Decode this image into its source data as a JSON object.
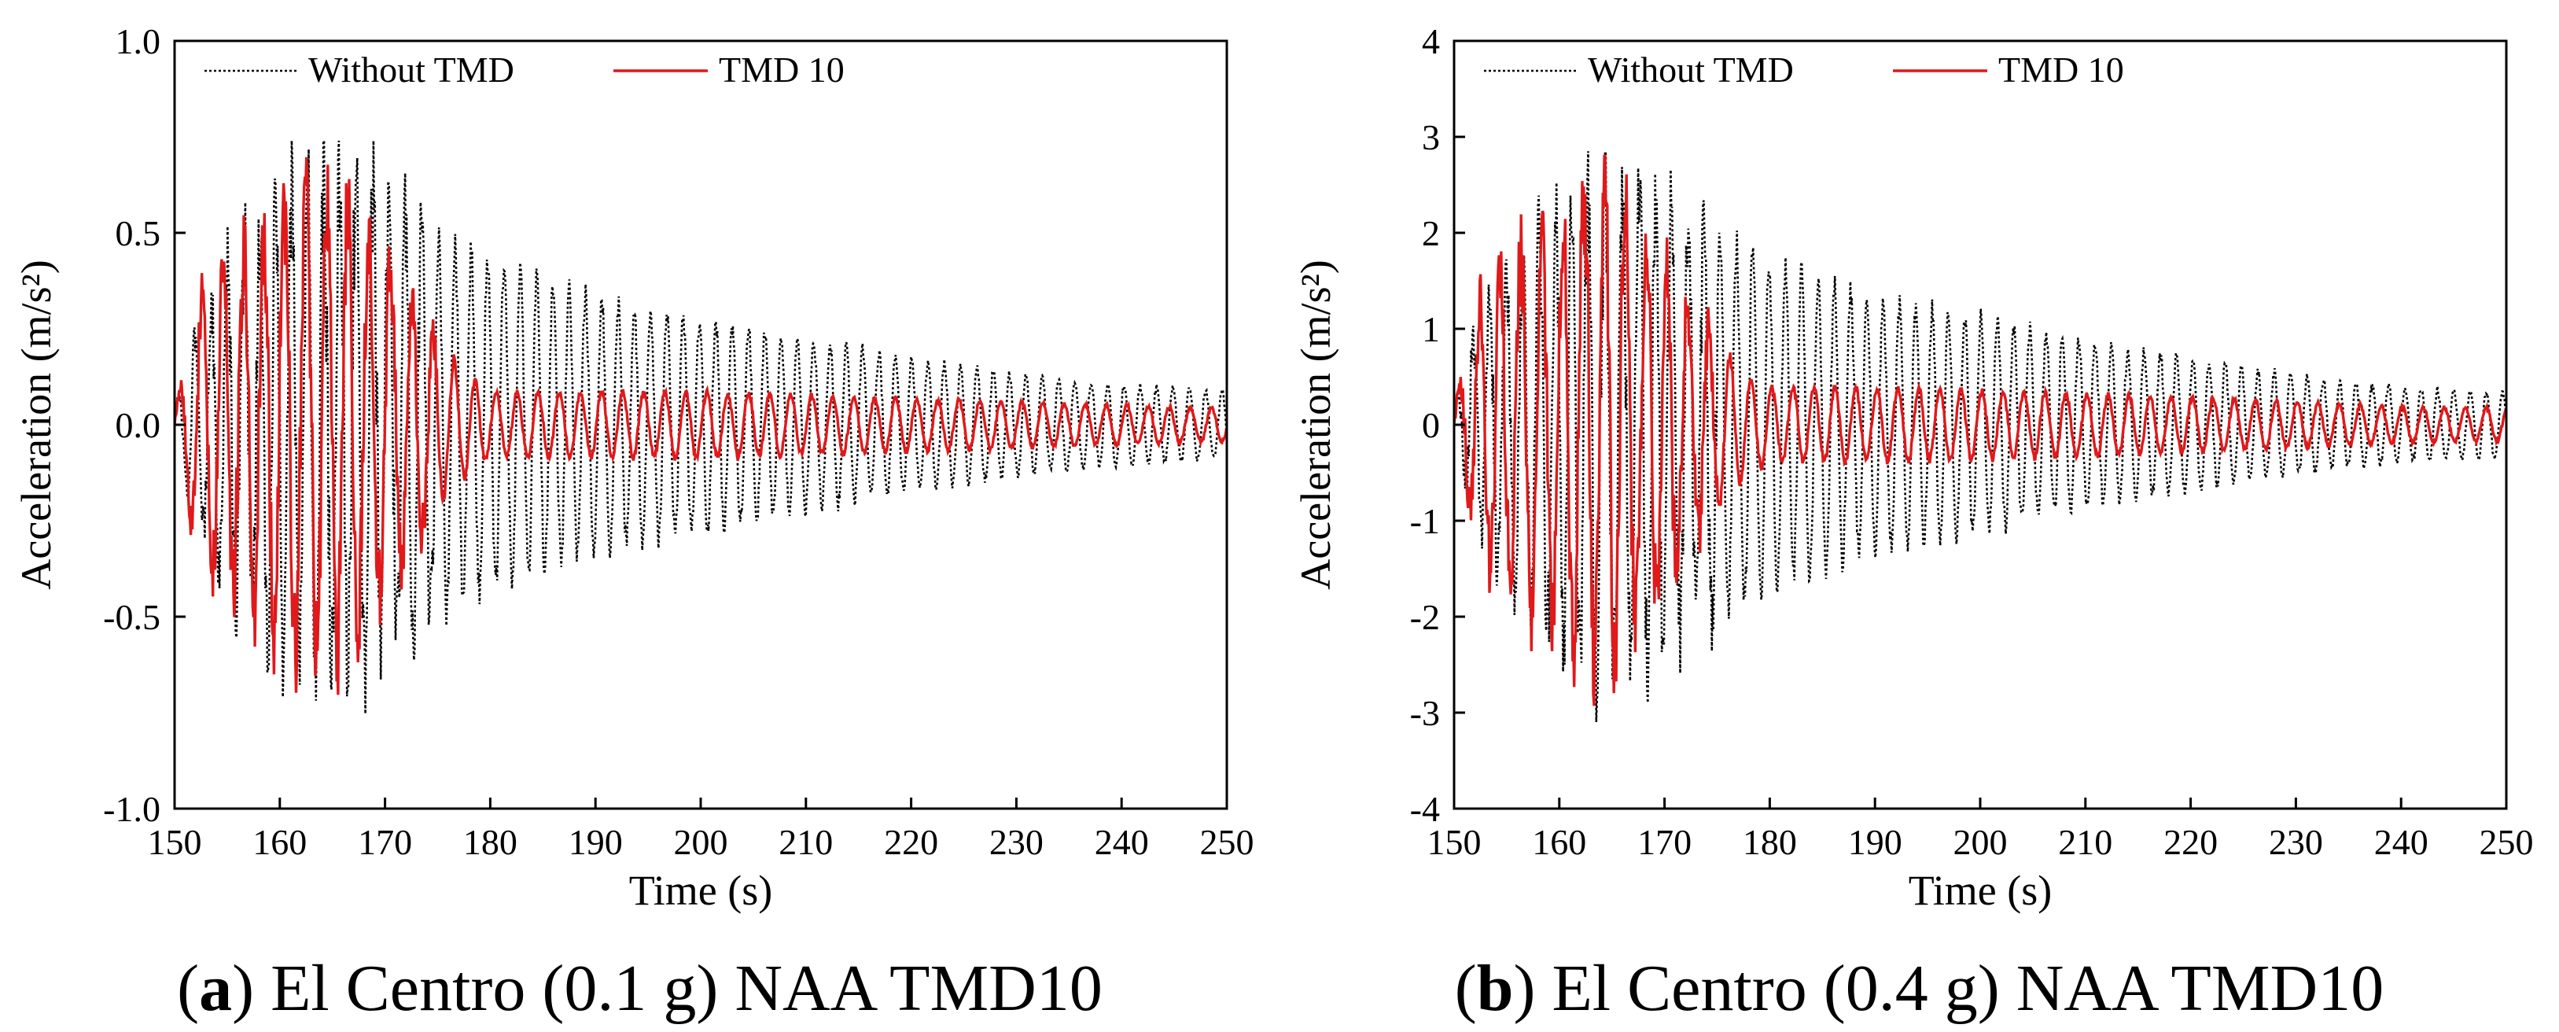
{
  "chart_data": [
    {
      "type": "line",
      "panel_letter": "a",
      "caption": "El Centro (0.1 g) NAA TMD10",
      "xlabel": "Time (s)",
      "ylabel": "Acceleration (m/s²)",
      "xlim": [
        150,
        250
      ],
      "ylim": [
        -1.0,
        1.0
      ],
      "xticks": [
        150,
        160,
        170,
        180,
        190,
        200,
        210,
        220,
        230,
        240,
        250
      ],
      "yticks": [
        -1.0,
        -0.5,
        0.0,
        0.5,
        1.0
      ],
      "ytick_labels": [
        "-1.0",
        "-0.5",
        "0.0",
        "0.5",
        "1.0"
      ],
      "legend": [
        "Without TMD",
        "TMD 10"
      ],
      "legend_position": "top-left",
      "series": [
        {
          "name": "Without TMD",
          "style": "dotted",
          "color": "#000000",
          "envelope": [
            [
              150,
              0.05
            ],
            [
              152,
              0.3
            ],
            [
              155,
              0.5
            ],
            [
              160,
              0.68
            ],
            [
              163,
              0.75
            ],
            [
              168,
              0.74
            ],
            [
              172,
              0.62
            ],
            [
              180,
              0.5
            ],
            [
              190,
              0.38
            ],
            [
              200,
              0.32
            ],
            [
              210,
              0.26
            ],
            [
              220,
              0.2
            ],
            [
              230,
              0.15
            ],
            [
              240,
              0.12
            ],
            [
              250,
              0.1
            ]
          ],
          "period": 1.55,
          "peak_max": 0.74,
          "peak_min": -0.8
        },
        {
          "name": "TMD 10",
          "style": "solid",
          "color": "#e0191b",
          "envelope": [
            [
              150,
              0.05
            ],
            [
              152,
              0.35
            ],
            [
              155,
              0.5
            ],
            [
              159,
              0.6
            ],
            [
              162,
              0.72
            ],
            [
              165,
              0.72
            ],
            [
              168,
              0.6
            ],
            [
              172,
              0.4
            ],
            [
              175,
              0.25
            ],
            [
              178,
              0.15
            ],
            [
              180,
              0.1
            ],
            [
              190,
              0.1
            ],
            [
              200,
              0.1
            ],
            [
              210,
              0.09
            ],
            [
              220,
              0.08
            ],
            [
              230,
              0.07
            ],
            [
              240,
              0.06
            ],
            [
              250,
              0.05
            ]
          ],
          "period": 2.0,
          "peak_max": 0.7,
          "peak_min": -0.74
        }
      ]
    },
    {
      "type": "line",
      "panel_letter": "b",
      "caption": "El Centro (0.4 g) NAA TMD10",
      "xlabel": "Time (s)",
      "ylabel": "Acceleration (m/s²)",
      "xlim": [
        150,
        250
      ],
      "ylim": [
        -4,
        4
      ],
      "xticks": [
        150,
        160,
        170,
        180,
        190,
        200,
        210,
        220,
        230,
        240,
        250
      ],
      "yticks": [
        -4,
        -3,
        -2,
        -1,
        0,
        1,
        2,
        3,
        4
      ],
      "ytick_labels": [
        "-4",
        "-3",
        "-2",
        "-1",
        "0",
        "1",
        "2",
        "3",
        "4"
      ],
      "legend": [
        "Without TMD",
        "TMD 10"
      ],
      "legend_position": "top-left",
      "series": [
        {
          "name": "Without TMD",
          "style": "dotted",
          "color": "#000000",
          "envelope": [
            [
              150,
              0.2
            ],
            [
              152,
              1.2
            ],
            [
              155,
              2.0
            ],
            [
              160,
              2.6
            ],
            [
              163,
              2.9
            ],
            [
              168,
              2.9
            ],
            [
              172,
              2.5
            ],
            [
              180,
              2.0
            ],
            [
              190,
              1.5
            ],
            [
              200,
              1.3
            ],
            [
              210,
              1.0
            ],
            [
              220,
              0.8
            ],
            [
              230,
              0.6
            ],
            [
              240,
              0.45
            ],
            [
              250,
              0.4
            ]
          ],
          "period": 1.55,
          "peak_max": 2.85,
          "peak_min": -3.1
        },
        {
          "name": "TMD 10",
          "style": "solid",
          "color": "#e0191b",
          "envelope": [
            [
              150,
              0.2
            ],
            [
              152,
              1.4
            ],
            [
              155,
              2.0
            ],
            [
              159,
              2.4
            ],
            [
              162,
              2.8
            ],
            [
              165,
              2.8
            ],
            [
              168,
              2.4
            ],
            [
              172,
              1.6
            ],
            [
              175,
              1.0
            ],
            [
              178,
              0.6
            ],
            [
              180,
              0.45
            ],
            [
              190,
              0.45
            ],
            [
              200,
              0.42
            ],
            [
              210,
              0.38
            ],
            [
              220,
              0.33
            ],
            [
              230,
              0.28
            ],
            [
              240,
              0.22
            ],
            [
              250,
              0.2
            ]
          ],
          "period": 2.0,
          "peak_max": 2.8,
          "peak_min": -2.95
        }
      ]
    }
  ]
}
